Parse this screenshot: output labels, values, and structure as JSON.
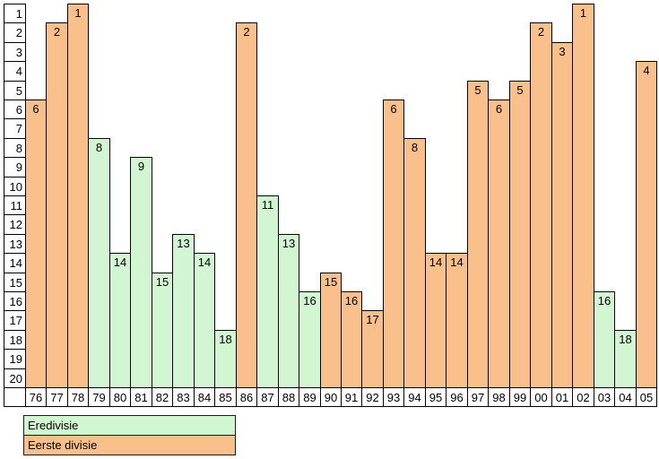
{
  "chart_data": {
    "type": "bar",
    "title": "",
    "description": "Final league position per season; y-axis inverted (1 = top)",
    "categories": [
      "76",
      "77",
      "78",
      "79",
      "80",
      "81",
      "82",
      "83",
      "84",
      "85",
      "86",
      "87",
      "88",
      "89",
      "90",
      "91",
      "92",
      "93",
      "94",
      "95",
      "96",
      "97",
      "98",
      "99",
      "00",
      "01",
      "02",
      "03",
      "04",
      "05"
    ],
    "values": [
      6,
      2,
      1,
      8,
      14,
      9,
      15,
      13,
      14,
      18,
      2,
      11,
      13,
      16,
      15,
      16,
      17,
      6,
      8,
      14,
      14,
      5,
      6,
      5,
      2,
      3,
      1,
      16,
      18,
      4
    ],
    "bar_series": [
      "Eerste divisie",
      "Eerste divisie",
      "Eerste divisie",
      "Eredivisie",
      "Eredivisie",
      "Eredivisie",
      "Eredivisie",
      "Eredivisie",
      "Eredivisie",
      "Eredivisie",
      "Eerste divisie",
      "Eredivisie",
      "Eredivisie",
      "Eredivisie",
      "Eerste divisie",
      "Eerste divisie",
      "Eerste divisie",
      "Eerste divisie",
      "Eerste divisie",
      "Eerste divisie",
      "Eerste divisie",
      "Eerste divisie",
      "Eerste divisie",
      "Eerste divisie",
      "Eerste divisie",
      "Eerste divisie",
      "Eerste divisie",
      "Eredivisie",
      "Eredivisie",
      "Eerste divisie"
    ],
    "series_colors": {
      "Eredivisie": "#D2F5D2",
      "Eerste divisie": "#FAC08C"
    },
    "y_ticks": [
      1,
      2,
      3,
      4,
      5,
      6,
      7,
      8,
      9,
      10,
      11,
      12,
      13,
      14,
      15,
      16,
      17,
      18,
      19,
      20
    ],
    "ylim": [
      1,
      20
    ],
    "y_axis_inverted": true,
    "grid": false,
    "xlabel": "",
    "ylabel": "",
    "legend_position": "bottom-left",
    "bar_border_color": "#000000",
    "label_color": "#000000",
    "background_color": "#FFFFFF"
  },
  "legend": {
    "items": [
      {
        "label": "Eredivisie",
        "color": "#D2F5D2"
      },
      {
        "label": "Eerste divisie",
        "color": "#FAC08C"
      }
    ]
  }
}
